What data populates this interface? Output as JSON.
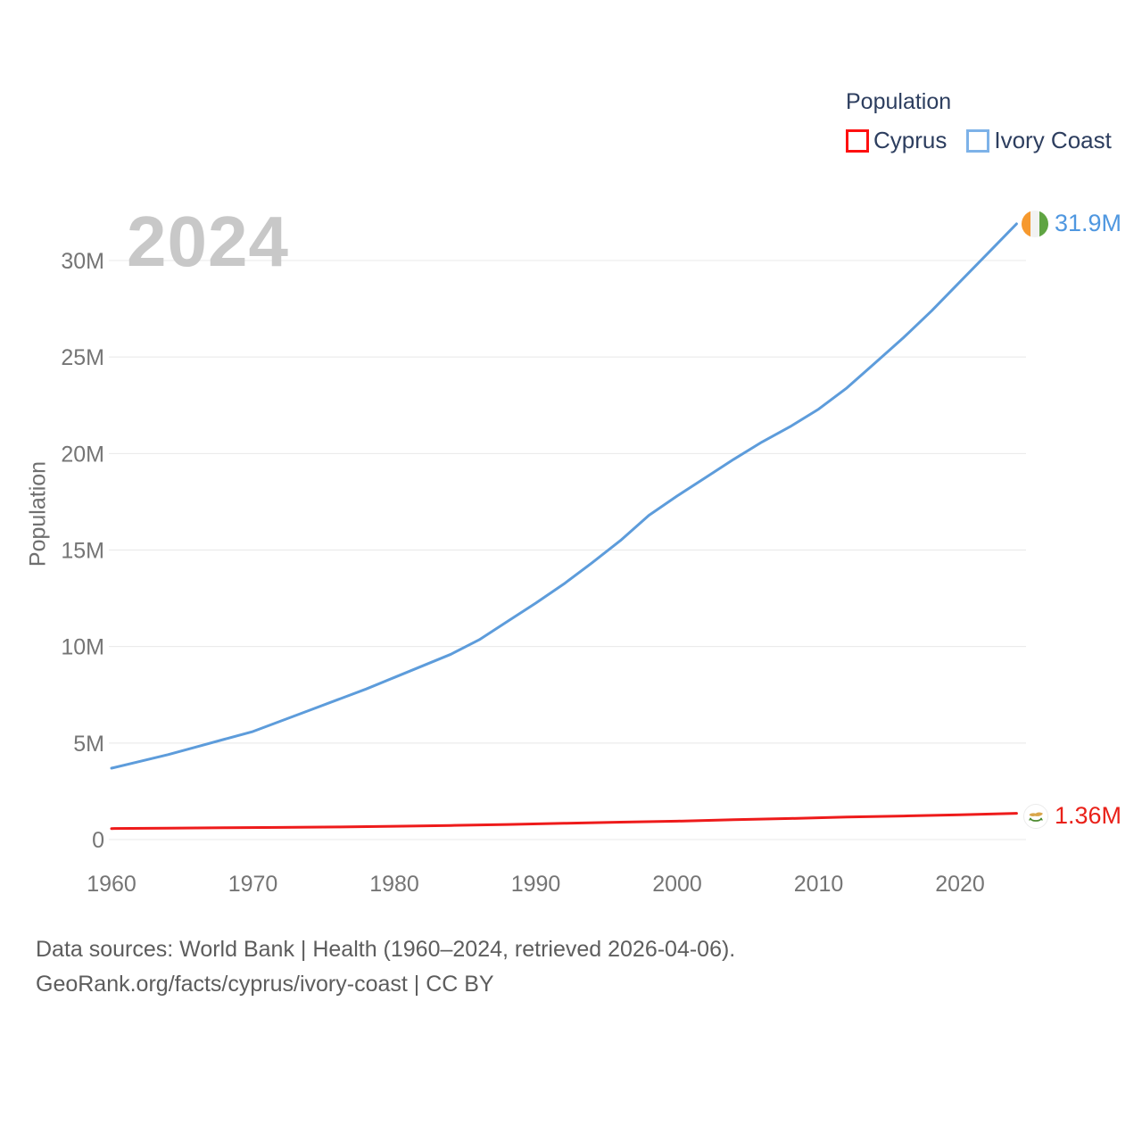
{
  "watermark_year": "2024",
  "legend": {
    "title": "Population",
    "items": [
      {
        "label": "Cyprus",
        "swatch_color": "#fe1010"
      },
      {
        "label": "Ivory Coast",
        "swatch_color": "#7db2e8"
      }
    ]
  },
  "y_axis_title": "Population",
  "end_labels": {
    "ivory_coast": "31.9M",
    "cyprus": "1.36M"
  },
  "footer": {
    "line1": "Data sources: World Bank | Health (1960–2024, retrieved 2026-04-06).",
    "line2": "GeoRank.org/facts/cyprus/ivory-coast | CC BY"
  },
  "chart_data": {
    "type": "line",
    "title": "Population",
    "xlabel": "",
    "ylabel": "Population",
    "x_range": [
      1960,
      2024
    ],
    "ylim": [
      0,
      32.5
    ],
    "grid": "horizontal",
    "legend_position": "top-right",
    "unit": "millions",
    "y_ticks": {
      "values": [
        0,
        5,
        10,
        15,
        20,
        25,
        30
      ],
      "labels": [
        "0",
        "5M",
        "10M",
        "15M",
        "20M",
        "25M",
        "30M"
      ]
    },
    "x_ticks": {
      "values": [
        1960,
        1970,
        1980,
        1990,
        2000,
        2010,
        2020
      ],
      "labels": [
        "1960",
        "1970",
        "1980",
        "1990",
        "2000",
        "2010",
        "2020"
      ]
    },
    "series": [
      {
        "name": "Cyprus",
        "color": "#ee1b1b",
        "end_label": "1.36M",
        "x": [
          1960,
          1964,
          1968,
          1972,
          1976,
          1980,
          1984,
          1988,
          1992,
          1996,
          2000,
          2004,
          2008,
          2012,
          2016,
          2020,
          2024
        ],
        "values": [
          0.57,
          0.59,
          0.61,
          0.63,
          0.65,
          0.69,
          0.73,
          0.78,
          0.84,
          0.9,
          0.95,
          1.03,
          1.09,
          1.17,
          1.22,
          1.28,
          1.36
        ]
      },
      {
        "name": "Ivory Coast",
        "color": "#5d9cdb",
        "end_label": "31.9M",
        "x": [
          1960,
          1962,
          1964,
          1966,
          1968,
          1970,
          1972,
          1974,
          1976,
          1978,
          1980,
          1982,
          1984,
          1986,
          1988,
          1990,
          1992,
          1994,
          1996,
          1998,
          2000,
          2002,
          2004,
          2006,
          2008,
          2010,
          2012,
          2014,
          2016,
          2018,
          2020,
          2022,
          2024
        ],
        "values": [
          3.7,
          4.05,
          4.4,
          4.8,
          5.2,
          5.6,
          6.15,
          6.7,
          7.25,
          7.8,
          8.4,
          9.0,
          9.6,
          10.35,
          11.3,
          12.25,
          13.25,
          14.35,
          15.5,
          16.8,
          17.8,
          18.75,
          19.7,
          20.6,
          21.4,
          22.3,
          23.4,
          24.7,
          26.0,
          27.4,
          28.9,
          30.4,
          31.9
        ]
      }
    ]
  }
}
